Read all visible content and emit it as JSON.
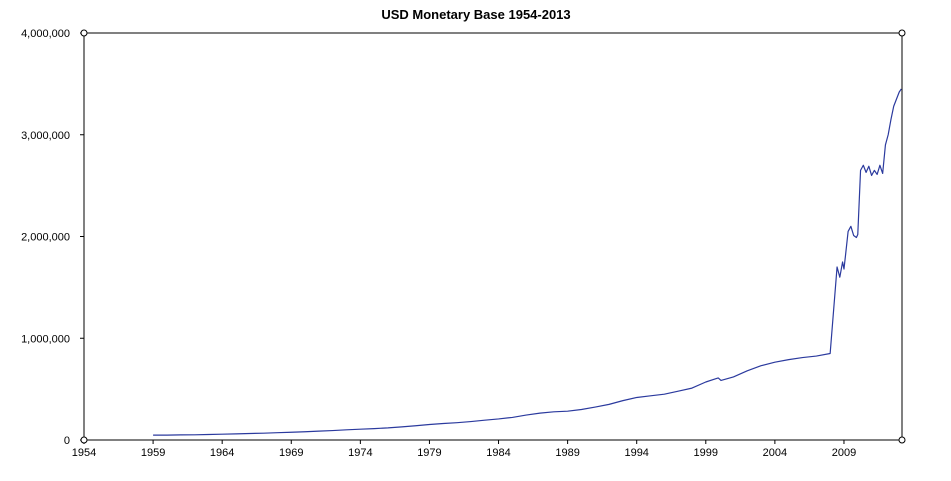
{
  "chart_data": {
    "type": "line",
    "title": "USD Monetary Base 1954-2013",
    "xlabel": "",
    "ylabel": "",
    "xlim": [
      1954,
      2013.2
    ],
    "ylim": [
      0,
      4000000
    ],
    "x_ticks": [
      1954,
      1959,
      1964,
      1969,
      1974,
      1979,
      1984,
      1989,
      1994,
      1999,
      2004,
      2009
    ],
    "x_tick_labels": [
      "1954",
      "1959",
      "1964",
      "1969",
      "1974",
      "1979",
      "1984",
      "1989",
      "1994",
      "1999",
      "2004",
      "2009"
    ],
    "y_ticks": [
      0,
      1000000,
      2000000,
      3000000,
      4000000
    ],
    "y_tick_labels": [
      "0",
      "1,000,000",
      "2,000,000",
      "3,000,000",
      "4,000,000"
    ],
    "grid": false,
    "line_color": "#2b3a9e",
    "series": [
      {
        "name": "Monetary Base",
        "x": [
          1959.0,
          1960.0,
          1961.0,
          1962.0,
          1963.0,
          1964.0,
          1965.0,
          1966.0,
          1967.0,
          1968.0,
          1969.0,
          1970.0,
          1971.0,
          1972.0,
          1973.0,
          1974.0,
          1975.0,
          1976.0,
          1977.0,
          1978.0,
          1979.0,
          1980.0,
          1981.0,
          1982.0,
          1983.0,
          1984.0,
          1985.0,
          1986.0,
          1987.0,
          1988.0,
          1989.0,
          1990.0,
          1991.0,
          1992.0,
          1993.0,
          1994.0,
          1995.0,
          1996.0,
          1997.0,
          1998.0,
          1999.0,
          1999.9,
          2000.1,
          2001.0,
          2002.0,
          2003.0,
          2004.0,
          2005.0,
          2006.0,
          2007.0,
          2008.0,
          2008.5,
          2008.7,
          2008.9,
          2009.0,
          2009.1,
          2009.3,
          2009.5,
          2009.7,
          2009.9,
          2010.0,
          2010.2,
          2010.4,
          2010.6,
          2010.8,
          2011.0,
          2011.2,
          2011.4,
          2011.6,
          2011.8,
          2012.0,
          2012.2,
          2012.4,
          2012.6,
          2012.8,
          2013.0,
          2013.15
        ],
        "y": [
          48000,
          48000,
          50000,
          51000,
          54000,
          57000,
          60000,
          64000,
          67000,
          72000,
          76000,
          81000,
          87000,
          93000,
          100000,
          106000,
          112000,
          119000,
          129000,
          140000,
          152000,
          162000,
          170000,
          181000,
          195000,
          207000,
          222000,
          245000,
          264000,
          277000,
          283000,
          300000,
          324000,
          350000,
          387000,
          418000,
          434000,
          450000,
          480000,
          510000,
          570000,
          610000,
          585000,
          620000,
          680000,
          730000,
          765000,
          790000,
          810000,
          825000,
          850000,
          1700000,
          1600000,
          1750000,
          1680000,
          1800000,
          2050000,
          2100000,
          2010000,
          1990000,
          2020000,
          2650000,
          2700000,
          2630000,
          2690000,
          2600000,
          2650000,
          2610000,
          2700000,
          2620000,
          2900000,
          3000000,
          3150000,
          3280000,
          3350000,
          3420000,
          3450000
        ]
      }
    ]
  }
}
